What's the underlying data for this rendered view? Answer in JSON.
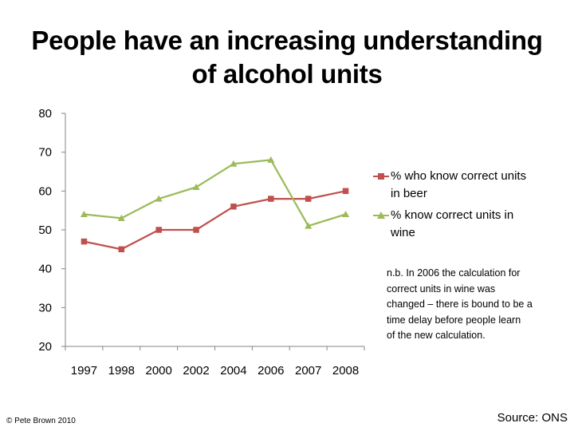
{
  "title": {
    "line1": "People have an increasing understanding",
    "line2": "of alcohol units"
  },
  "chart_data": {
    "type": "line",
    "categories": [
      "1997",
      "1998",
      "2000",
      "2002",
      "2004",
      "2006",
      "2007",
      "2008"
    ],
    "series": [
      {
        "name": "% who know correct units in beer",
        "values": [
          47,
          45,
          50,
          50,
          56,
          58,
          58,
          60
        ],
        "color": "#c0504d",
        "marker": "square"
      },
      {
        "name": "% know correct units in wine",
        "values": [
          54,
          53,
          58,
          61,
          67,
          68,
          51,
          54
        ],
        "color": "#9bbb59",
        "marker": "triangle"
      }
    ],
    "yticks": [
      "20",
      "30",
      "40",
      "50",
      "60",
      "70",
      "80"
    ],
    "ylim": [
      20,
      80
    ],
    "grid": false,
    "legend": "right"
  },
  "legend": {
    "beer": {
      "line1": "% who know correct units",
      "line2": "in beer"
    },
    "wine": {
      "line1": "% know correct units in",
      "line2": "wine"
    }
  },
  "note": {
    "line1": "n.b. In 2006 the calculation for",
    "line2": "correct units in wine was",
    "line3": "changed – there is bound to be a",
    "line4": "time delay before people learn",
    "line5": "of the new calculation."
  },
  "footer": {
    "copyright": "© Pete Brown 2010",
    "source": "Source: ONS"
  },
  "colors": {
    "beer": "#c0504d",
    "wine": "#9bbb59",
    "axis": "#868686"
  }
}
